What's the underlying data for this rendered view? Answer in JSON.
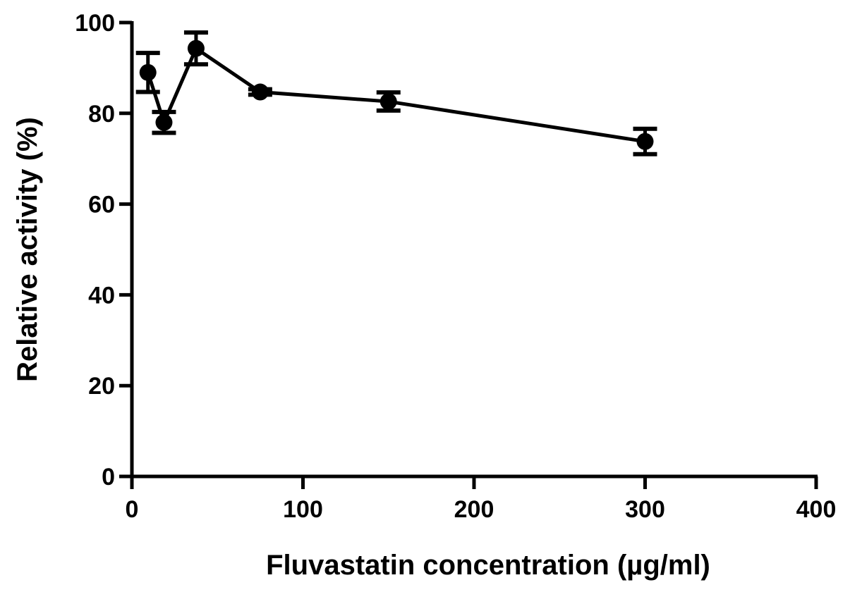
{
  "chart_data": {
    "type": "line",
    "title": "",
    "xlabel": "Fluvastatin concentration (µg/ml)",
    "ylabel": "Relative activity (%)",
    "xlim": [
      0,
      400
    ],
    "ylim": [
      0,
      100
    ],
    "xticks": [
      0,
      100,
      200,
      300,
      400
    ],
    "yticks": [
      0,
      20,
      40,
      60,
      80,
      100
    ],
    "xtick_labels": [
      "0",
      "100",
      "200",
      "300",
      "400"
    ],
    "ytick_labels": [
      "0",
      "20",
      "40",
      "60",
      "80",
      "100"
    ],
    "grid": false,
    "legend": "none",
    "series": [
      {
        "x": [
          9.375,
          18.75,
          37.5,
          75,
          150,
          300
        ],
        "y": [
          89.0,
          78.0,
          94.3,
          84.7,
          82.6,
          73.8
        ],
        "error": [
          4.3,
          2.3,
          3.5,
          0.6,
          2.0,
          2.8
        ]
      }
    ],
    "colors": {
      "line": "#000000",
      "marker": "#000000"
    }
  }
}
